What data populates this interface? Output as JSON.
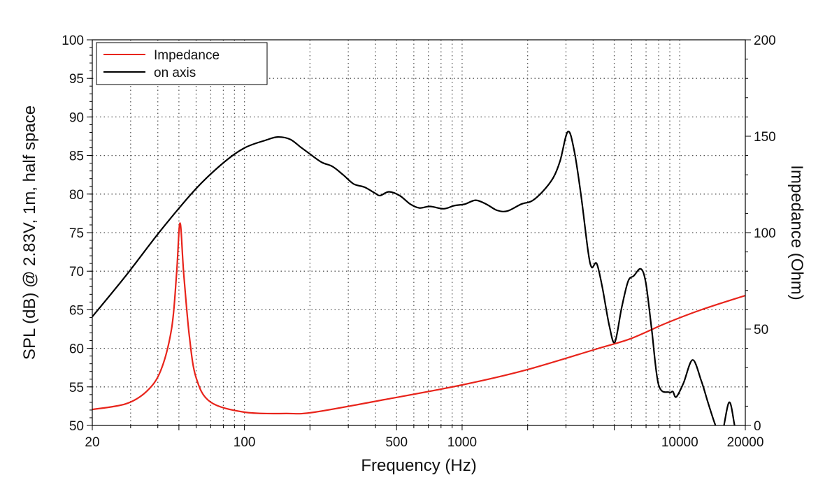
{
  "chart_data": {
    "type": "line",
    "xlabel": "Frequency (Hz)",
    "ylabel": "SPL (dB) @ 2.83V, 1m, half space",
    "y2label": "Impedance (Ohm)",
    "xscale": "log",
    "xlim": [
      20,
      20000
    ],
    "ylim": [
      50,
      100
    ],
    "y2lim": [
      0,
      200
    ],
    "xticks": [
      20,
      100,
      500,
      1000,
      10000,
      20000
    ],
    "yticks": [
      50,
      55,
      60,
      65,
      70,
      75,
      80,
      85,
      90,
      95,
      100
    ],
    "y2ticks": [
      0,
      50,
      100,
      150,
      200
    ],
    "grid": true,
    "legend_position": "top-left",
    "series": [
      {
        "name": "Impedance",
        "axis": "right",
        "color": "#e8241b",
        "points": [
          [
            20,
            8.3
          ],
          [
            28.5,
            11.2
          ],
          [
            35.6,
            17.8
          ],
          [
            41.3,
            28.6
          ],
          [
            46.3,
            50.4
          ],
          [
            48.8,
            79
          ],
          [
            50.6,
            105
          ],
          [
            52.6,
            79
          ],
          [
            55.8,
            46.7
          ],
          [
            59.9,
            25
          ],
          [
            69.6,
            12.3
          ],
          [
            100,
            6.9
          ],
          [
            156,
            6.2
          ],
          [
            210,
            6.9
          ],
          [
            440,
            13.4
          ],
          [
            1000,
            21
          ],
          [
            1940,
            28.6
          ],
          [
            4100,
            39.5
          ],
          [
            5940,
            45
          ],
          [
            8600,
            52.9
          ],
          [
            12550,
            60
          ],
          [
            20000,
            67.4
          ]
        ]
      },
      {
        "name": "on axis",
        "axis": "left",
        "color": "#000000",
        "points": [
          [
            20,
            64.1
          ],
          [
            28.5,
            69.4
          ],
          [
            41.3,
            75.3
          ],
          [
            59.9,
            80.7
          ],
          [
            80.4,
            84.1
          ],
          [
            100.3,
            86.0
          ],
          [
            125.8,
            87.0
          ],
          [
            142,
            87.4
          ],
          [
            162,
            87.1
          ],
          [
            181,
            86.1
          ],
          [
            202,
            85.1
          ],
          [
            227,
            84.1
          ],
          [
            253,
            83.6
          ],
          [
            284,
            82.5
          ],
          [
            318,
            81.3
          ],
          [
            356,
            80.9
          ],
          [
            399,
            80.1
          ],
          [
            420,
            79.8
          ],
          [
            461,
            80.3
          ],
          [
            517,
            79.8
          ],
          [
            578,
            78.7
          ],
          [
            636,
            78.2
          ],
          [
            712,
            78.4
          ],
          [
            823,
            78.1
          ],
          [
            919,
            78.5
          ],
          [
            1030,
            78.7
          ],
          [
            1153,
            79.2
          ],
          [
            1290,
            78.7
          ],
          [
            1445,
            77.9
          ],
          [
            1614,
            77.8
          ],
          [
            1870,
            78.7
          ],
          [
            2090,
            79.1
          ],
          [
            2340,
            80.3
          ],
          [
            2620,
            82.1
          ],
          [
            2820,
            84.3
          ],
          [
            3060,
            88.1
          ],
          [
            3270,
            85.7
          ],
          [
            3520,
            79.8
          ],
          [
            3790,
            72.6
          ],
          [
            3940,
            70.5
          ],
          [
            4150,
            71.0
          ],
          [
            4400,
            68.0
          ],
          [
            4740,
            63.0
          ],
          [
            5030,
            60.8
          ],
          [
            5410,
            65.3
          ],
          [
            5790,
            68.7
          ],
          [
            6150,
            69.4
          ],
          [
            6620,
            70.3
          ],
          [
            6980,
            68.5
          ],
          [
            7420,
            62.6
          ],
          [
            7990,
            55.3
          ],
          [
            8940,
            54.3
          ],
          [
            9290,
            54.4
          ],
          [
            9640,
            53.7
          ],
          [
            10400,
            55.5
          ],
          [
            11450,
            58.5
          ],
          [
            12550,
            55.8
          ],
          [
            13530,
            52.8
          ],
          [
            14590,
            50
          ],
          [
            15500,
            48.5
          ],
          [
            16840,
            53.0
          ],
          [
            17860,
            50
          ],
          [
            18500,
            48
          ]
        ]
      }
    ]
  }
}
